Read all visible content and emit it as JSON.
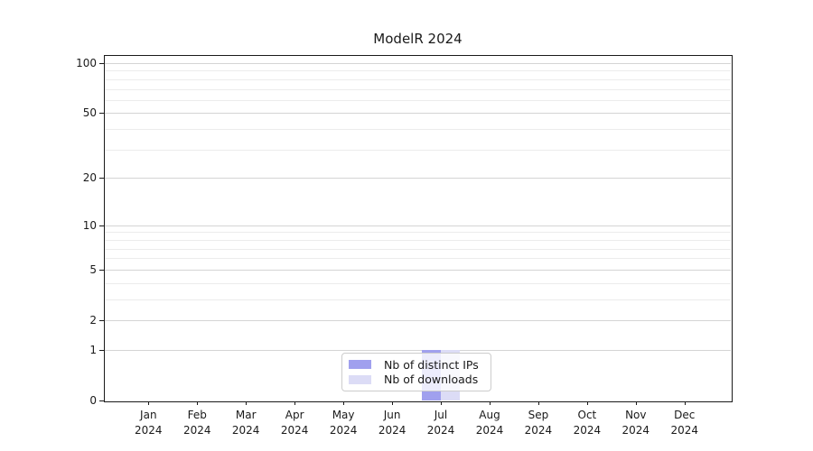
{
  "chart_data": {
    "type": "bar",
    "title": "ModelR 2024",
    "categories": [
      "Jan 2024",
      "Feb 2024",
      "Mar 2024",
      "Apr 2024",
      "May 2024",
      "Jun 2024",
      "Jul 2024",
      "Aug 2024",
      "Sep 2024",
      "Oct 2024",
      "Nov 2024",
      "Dec 2024"
    ],
    "series": [
      {
        "name": "Nb of distinct IPs",
        "color": "#a0a0ee",
        "values": [
          0,
          0,
          0,
          0,
          0,
          0,
          1,
          0,
          0,
          0,
          0,
          0
        ]
      },
      {
        "name": "Nb of downloads",
        "color": "#dcdcf6",
        "values": [
          0,
          0,
          0,
          0,
          0,
          0,
          1,
          0,
          0,
          0,
          0,
          0
        ]
      }
    ],
    "xlabel": "",
    "ylabel": "",
    "yscale": "log1p",
    "ylim": [
      0,
      112
    ],
    "y_ticks_major": [
      0,
      1,
      2,
      5,
      10,
      20,
      50,
      100
    ],
    "y_ticks_minor": [
      3,
      4,
      6,
      7,
      8,
      9,
      30,
      40,
      60,
      70,
      80,
      90
    ],
    "grid": "horizontal",
    "legend_position": "lower center"
  },
  "styles": {
    "series_colors": [
      "#a0a0ee",
      "#dcdcf6"
    ],
    "grid_major_color": "#d4d4d4",
    "grid_minor_color": "#ececec",
    "axis_color": "#1a1a1a",
    "text_color": "#1a1a1a",
    "legend_border_color": "#cccccc"
  }
}
